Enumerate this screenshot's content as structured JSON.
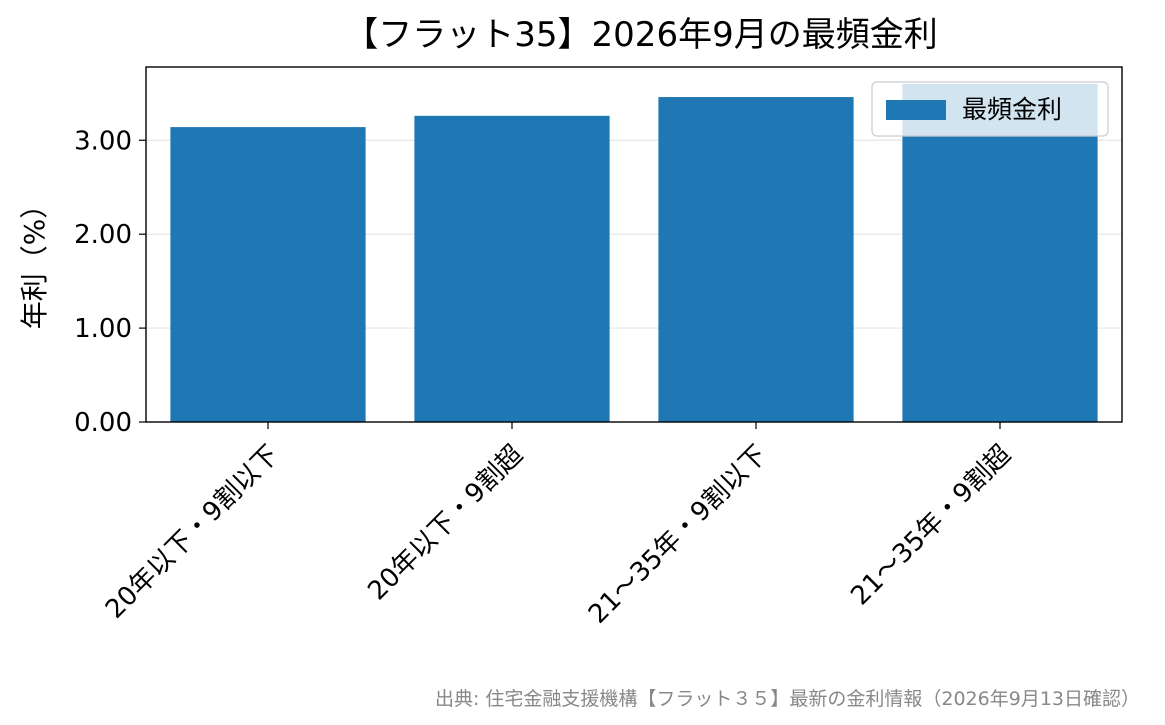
{
  "chart_data": {
    "type": "bar",
    "title": "【フラット35】2026年9月の最頻金利",
    "xlabel": "",
    "ylabel": "年利（%）",
    "categories": [
      "20年以下・9割以下",
      "20年以下・9割超",
      "21〜35年・9割以下",
      "21〜35年・9割超"
    ],
    "series": [
      {
        "name": "最頻金利",
        "values": [
          3.14,
          3.26,
          3.46,
          3.6
        ],
        "color": "#1f77b4"
      }
    ],
    "ylim": [
      0,
      3.78
    ],
    "yticks": [
      "0.00",
      "1.00",
      "2.00",
      "3.00"
    ],
    "grid": "horizontal",
    "legend": "top-right"
  },
  "source_note": "出典: 住宅金融支援機構【フラット３５】最新の金利情報（2026年9月13日確認）"
}
